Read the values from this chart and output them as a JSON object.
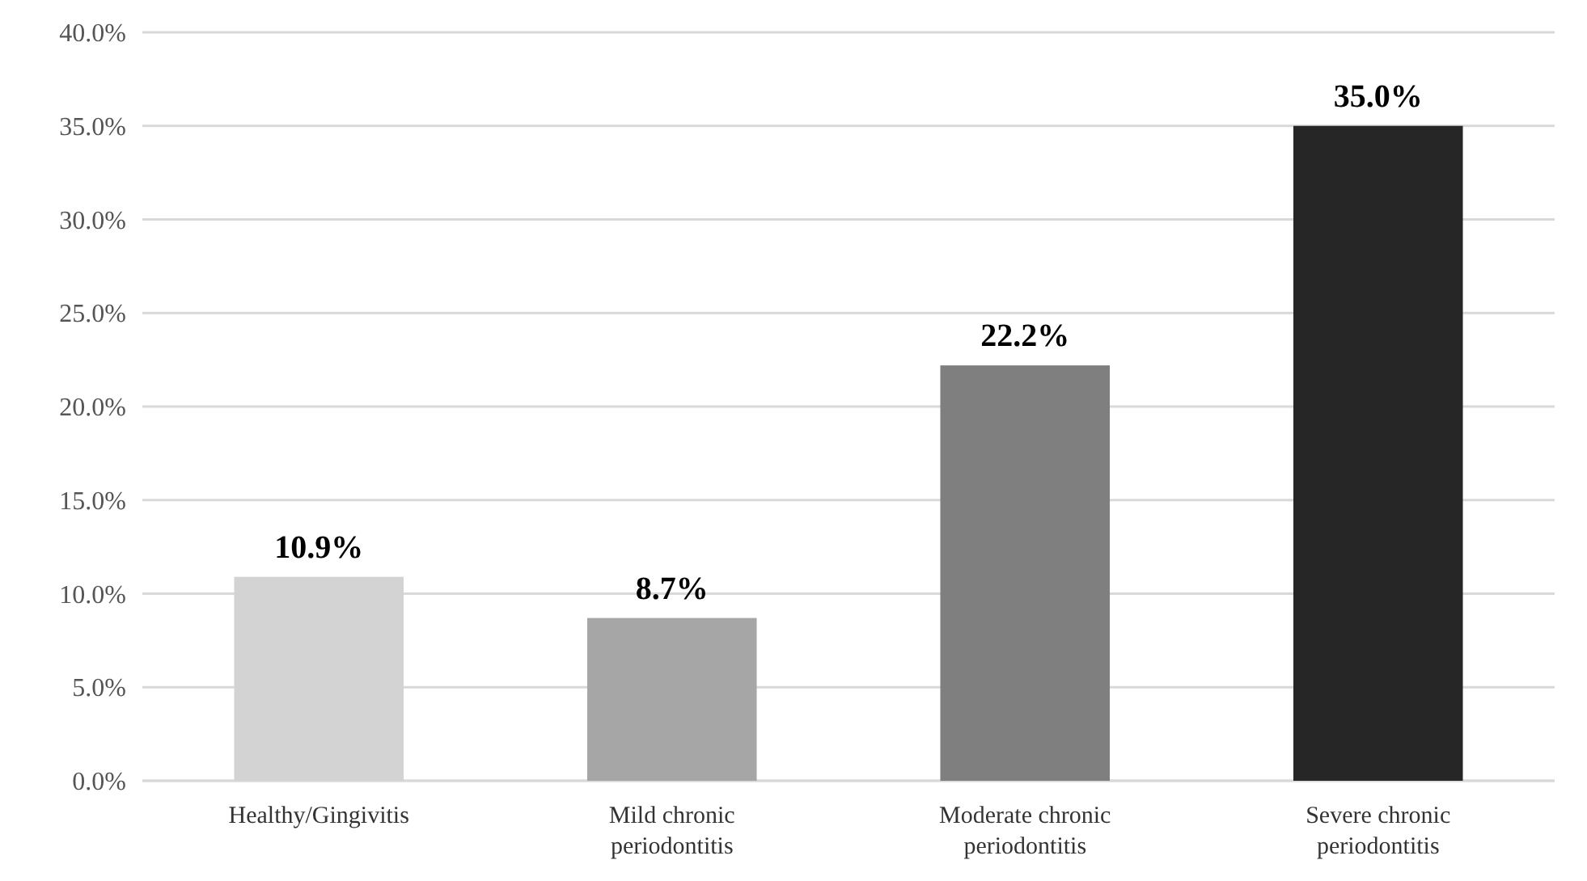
{
  "chart_data": {
    "type": "bar",
    "categories": [
      "Healthy/Gingivitis",
      "Mild chronic periodontitis",
      "Moderate chronic periodontitis",
      "Severe chronic periodontitis"
    ],
    "values": [
      10.9,
      8.7,
      22.2,
      35.0
    ],
    "colors": [
      "#d3d3d3",
      "#a6a6a6",
      "#7f7f7f",
      "#262626"
    ],
    "value_labels": [
      "10.9%",
      "8.7%",
      "22.2%",
      "35.0%"
    ],
    "ylim": [
      0,
      40
    ],
    "yticks": [
      {
        "value": 0,
        "label": "0.0%"
      },
      {
        "value": 5,
        "label": "5.0%"
      },
      {
        "value": 10,
        "label": "10.0%"
      },
      {
        "value": 15,
        "label": "15.0%"
      },
      {
        "value": 20,
        "label": "20.0%"
      },
      {
        "value": 25,
        "label": "25.0%"
      },
      {
        "value": 30,
        "label": "30.0%"
      },
      {
        "value": 35,
        "label": "35.0%"
      },
      {
        "value": 40,
        "label": "40.0%"
      }
    ],
    "grid": "y"
  }
}
